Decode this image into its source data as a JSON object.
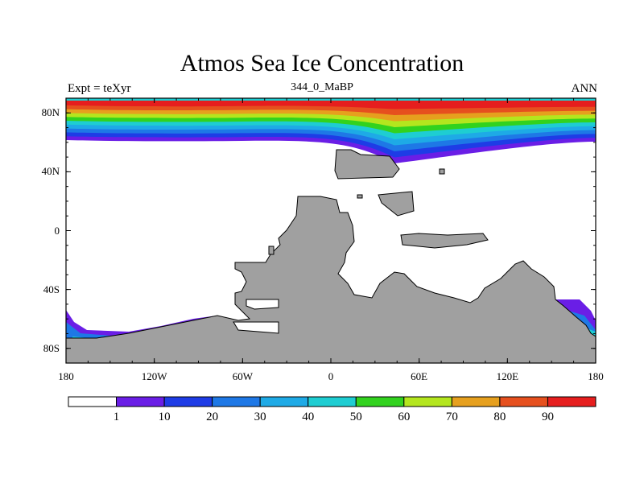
{
  "title": "Atmos Sea Ice Concentration",
  "subtitle_left": "Expt = teXyr",
  "subtitle_center": "344_0_MaBP",
  "subtitle_right": "ANN",
  "lat_ticks": [
    {
      "value": 80,
      "label": "80N"
    },
    {
      "value": 40,
      "label": "40N"
    },
    {
      "value": 0,
      "label": "0"
    },
    {
      "value": -40,
      "label": "40S"
    },
    {
      "value": -80,
      "label": "80S"
    }
  ],
  "lon_ticks": [
    {
      "value": -180,
      "label": "180"
    },
    {
      "value": -120,
      "label": "120W"
    },
    {
      "value": -60,
      "label": "60W"
    },
    {
      "value": 0,
      "label": "0"
    },
    {
      "value": 60,
      "label": "60E"
    },
    {
      "value": 120,
      "label": "120E"
    },
    {
      "value": 180,
      "label": "180"
    }
  ],
  "colorbar": {
    "colors": [
      "#ffffff",
      "#6a1ee6",
      "#1e3ce6",
      "#1e78e6",
      "#1eaae6",
      "#1ecdd2",
      "#32d21e",
      "#b4e61e",
      "#e6a01e",
      "#e6501e",
      "#e61e1e"
    ],
    "labels": [
      "1",
      "10",
      "20",
      "30",
      "40",
      "50",
      "60",
      "70",
      "80",
      "90"
    ]
  },
  "colors": {
    "land": "#a0a0a0",
    "ice_levels": [
      "#6a1ee6",
      "#1e3ce6",
      "#1e78e6",
      "#1eaae6",
      "#1ecdd2",
      "#32d21e",
      "#b4e61e",
      "#e6a01e",
      "#e6501e",
      "#e61e1e"
    ]
  }
}
